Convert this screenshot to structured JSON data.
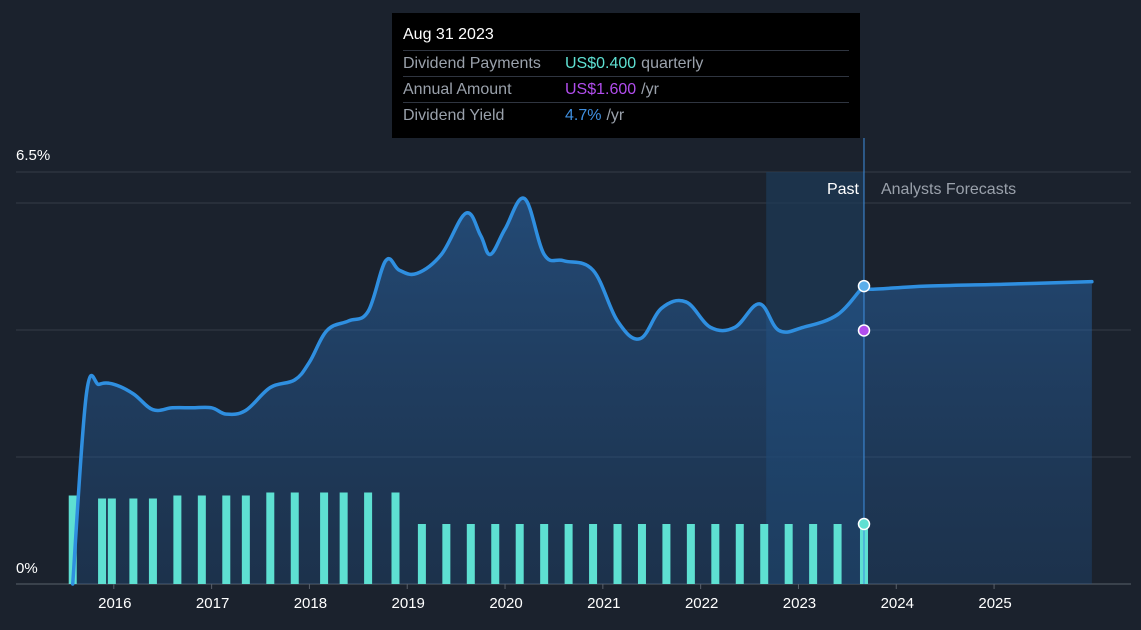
{
  "tooltip": {
    "date": "Aug 31 2023",
    "rows": [
      {
        "label": "Dividend Payments",
        "value": "US$0.400",
        "unit": "quarterly",
        "color": "#5ee0d2"
      },
      {
        "label": "Annual Amount",
        "value": "US$1.600",
        "unit": "/yr",
        "color": "#b14ded"
      },
      {
        "label": "Dividend Yield",
        "value": "4.7%",
        "unit": "/yr",
        "color": "#3f8fe0"
      }
    ]
  },
  "colors": {
    "background": "#1b222d",
    "yield_line": "#2f8fe0",
    "bars": "#5ee0d2",
    "annual_marker": "#b14ded",
    "past_label": "#ffffff",
    "forecast_label": "#9aa1ab"
  },
  "chart_data": {
    "type": "line",
    "x_start": 2015.0,
    "x_end": 2026.4,
    "ylim": [
      0,
      6.5
    ],
    "y_tick_labels": [
      {
        "value": 6.5,
        "label": "6.5%"
      },
      {
        "value": 0,
        "label": "0%"
      }
    ],
    "x_ticks": [
      "2016",
      "2017",
      "2018",
      "2019",
      "2020",
      "2021",
      "2022",
      "2023",
      "2024",
      "2025"
    ],
    "grid": true,
    "past_label": "Past",
    "forecast_label": "Analysts Forecasts",
    "past_forecast_boundary": 2023.67,
    "shaded_region_start": 2022.67,
    "series": [
      {
        "kind": "dividend_yield",
        "unit": "%",
        "points": [
          [
            2015.58,
            0.0
          ],
          [
            2015.72,
            3.0
          ],
          [
            2015.85,
            3.15
          ],
          [
            2016.0,
            3.15
          ],
          [
            2016.2,
            3.0
          ],
          [
            2016.4,
            2.75
          ],
          [
            2016.6,
            2.78
          ],
          [
            2016.8,
            2.78
          ],
          [
            2017.0,
            2.78
          ],
          [
            2017.15,
            2.68
          ],
          [
            2017.35,
            2.74
          ],
          [
            2017.6,
            3.1
          ],
          [
            2017.85,
            3.22
          ],
          [
            2018.0,
            3.5
          ],
          [
            2018.18,
            4.0
          ],
          [
            2018.4,
            4.15
          ],
          [
            2018.6,
            4.3
          ],
          [
            2018.78,
            5.1
          ],
          [
            2018.92,
            4.95
          ],
          [
            2019.1,
            4.9
          ],
          [
            2019.35,
            5.2
          ],
          [
            2019.6,
            5.85
          ],
          [
            2019.75,
            5.5
          ],
          [
            2019.85,
            5.2
          ],
          [
            2020.0,
            5.6
          ],
          [
            2020.2,
            6.08
          ],
          [
            2020.4,
            5.2
          ],
          [
            2020.6,
            5.1
          ],
          [
            2020.9,
            4.95
          ],
          [
            2021.15,
            4.15
          ],
          [
            2021.38,
            3.87
          ],
          [
            2021.6,
            4.35
          ],
          [
            2021.85,
            4.45
          ],
          [
            2022.1,
            4.05
          ],
          [
            2022.35,
            4.05
          ],
          [
            2022.6,
            4.42
          ],
          [
            2022.8,
            4.0
          ],
          [
            2023.05,
            4.05
          ],
          [
            2023.4,
            4.25
          ],
          [
            2023.67,
            4.7
          ],
          [
            2023.73,
            4.65
          ],
          [
            2024.3,
            4.7
          ],
          [
            2025.1,
            4.73
          ],
          [
            2026.0,
            4.77
          ]
        ]
      },
      {
        "kind": "dividend_payments_quarterly",
        "unit": "USD",
        "x": [
          2015.58,
          2015.88,
          2015.98,
          2016.2,
          2016.4,
          2016.65,
          2016.9,
          2017.15,
          2017.35,
          2017.6,
          2017.85,
          2018.15,
          2018.35,
          2018.6,
          2018.88,
          2019.15,
          2019.4,
          2019.65,
          2019.9,
          2020.15,
          2020.4,
          2020.65,
          2020.9,
          2021.15,
          2021.4,
          2021.65,
          2021.9,
          2022.15,
          2022.4,
          2022.65,
          2022.9,
          2023.15,
          2023.4,
          2023.67
        ],
        "values": [
          0.59,
          0.57,
          0.57,
          0.57,
          0.57,
          0.59,
          0.59,
          0.59,
          0.59,
          0.61,
          0.61,
          0.61,
          0.61,
          0.61,
          0.61,
          0.4,
          0.4,
          0.4,
          0.4,
          0.4,
          0.4,
          0.4,
          0.4,
          0.4,
          0.4,
          0.4,
          0.4,
          0.4,
          0.4,
          0.4,
          0.4,
          0.4,
          0.4,
          0.4
        ]
      }
    ],
    "annual_amount_marker": {
      "x": 2023.67,
      "value_pct": 4.0
    },
    "bar_max": 1.0
  }
}
